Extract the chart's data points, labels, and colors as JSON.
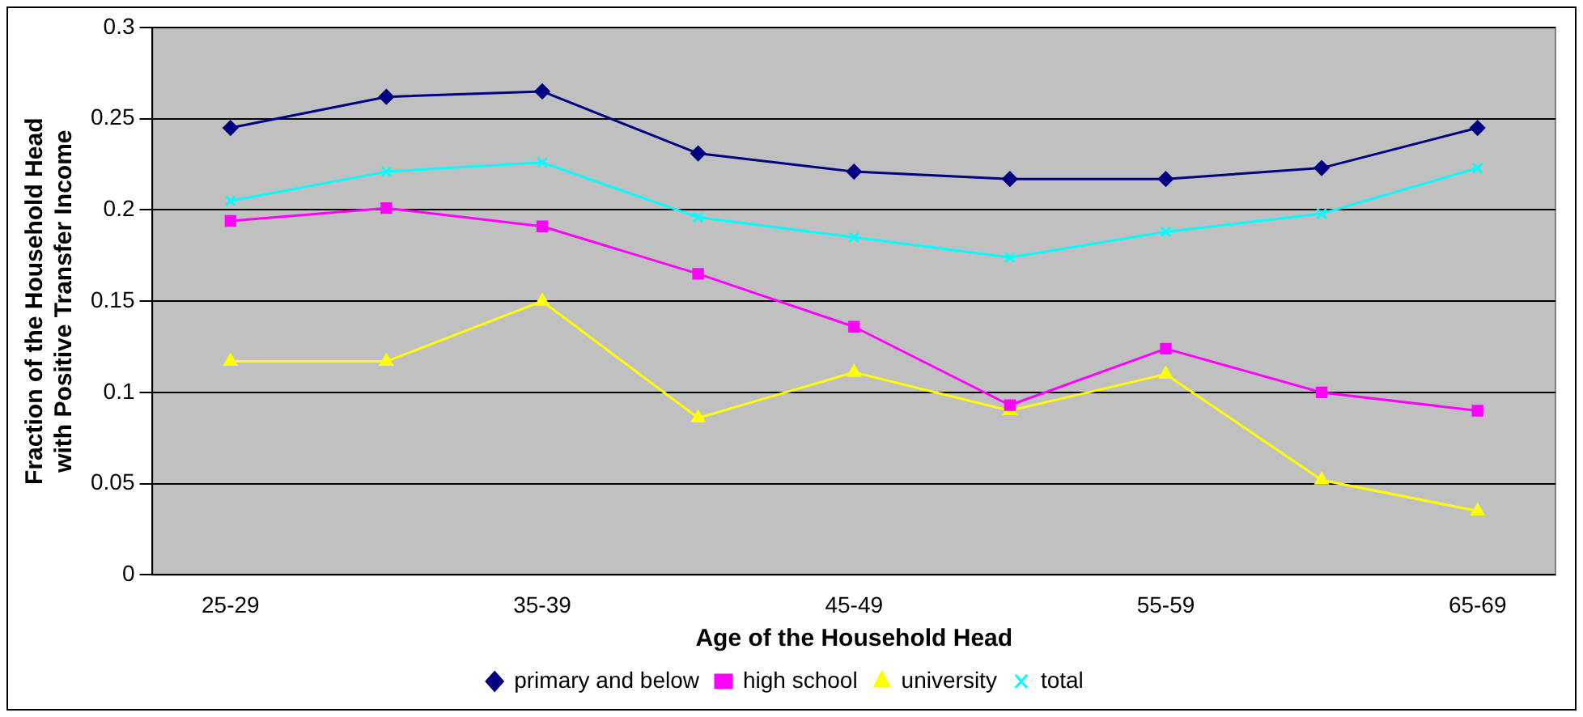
{
  "chart_data": {
    "type": "line",
    "xlabel": "Age of the Household Head",
    "ylabel": "Fraction of the Household Head\nwith Positive Transfer Income",
    "categories": [
      "25-29",
      null,
      "35-39",
      null,
      "45-49",
      null,
      "55-59",
      null,
      "65-69"
    ],
    "series": [
      {
        "name": "primary and below",
        "color": "#000080",
        "marker": "diamond",
        "values": [
          0.245,
          0.262,
          0.265,
          0.231,
          0.221,
          0.217,
          0.217,
          0.223,
          0.245
        ]
      },
      {
        "name": "high school",
        "color": "#ff00ff",
        "marker": "square",
        "values": [
          0.194,
          0.201,
          0.191,
          0.165,
          0.136,
          0.093,
          0.124,
          0.1,
          0.09
        ]
      },
      {
        "name": "university",
        "color": "#ffff00",
        "marker": "triangle",
        "values": [
          0.117,
          0.117,
          0.15,
          0.086,
          0.111,
          0.09,
          0.11,
          0.052,
          0.035
        ]
      },
      {
        "name": "total",
        "color": "#00ffff",
        "marker": "cross",
        "values": [
          0.205,
          0.221,
          0.226,
          0.196,
          0.185,
          0.174,
          0.188,
          0.198,
          0.223
        ]
      }
    ],
    "ylim": [
      0,
      0.3
    ],
    "yticks": [
      0,
      0.05,
      0.1,
      0.15,
      0.2,
      0.25,
      0.3
    ],
    "grid": "y",
    "legend": "bottom",
    "line_style": "solid"
  }
}
